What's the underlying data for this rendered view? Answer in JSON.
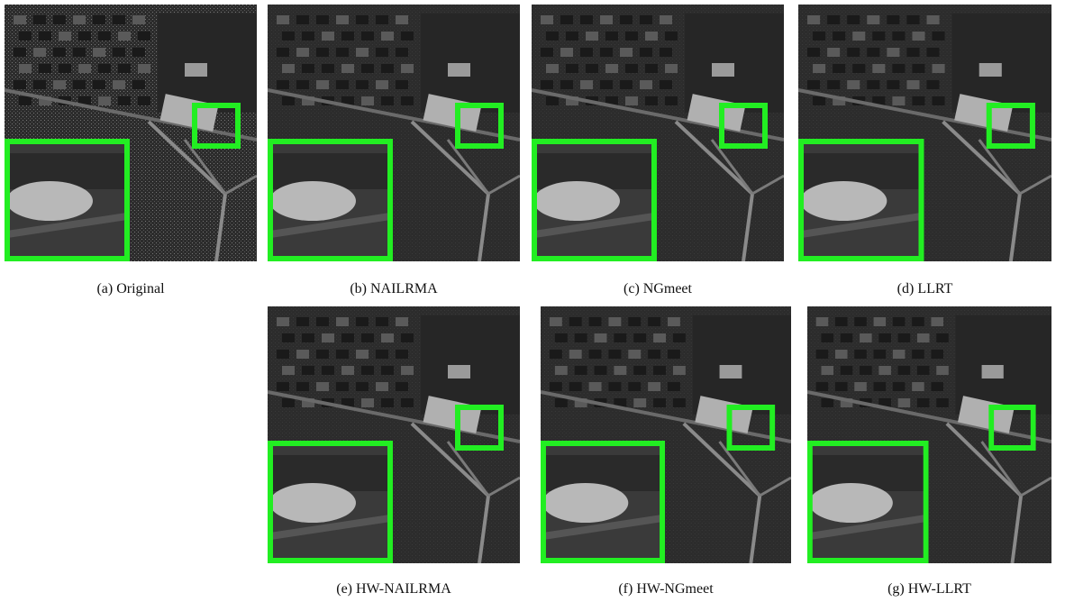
{
  "figure": {
    "panels": [
      {
        "caption": "(a) Original"
      },
      {
        "caption": "(b) NAILRMA"
      },
      {
        "caption": "(c) NGmeet"
      },
      {
        "caption": "(d) LLRT"
      },
      {
        "caption": "(e) HW-NAILRMA"
      },
      {
        "caption": "(f) HW-NGmeet"
      },
      {
        "caption": "(g) HW-LLRT"
      }
    ]
  }
}
